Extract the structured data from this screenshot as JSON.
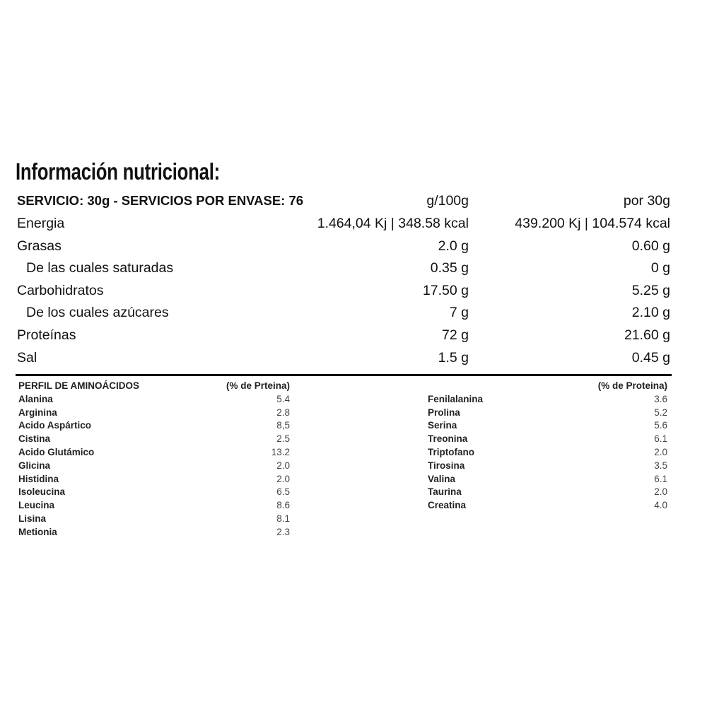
{
  "title": "Información nutricional:",
  "nutrition": {
    "header": {
      "label": "SERVICIO: 30g - SERVICIOS POR ENVASE: 76",
      "col1": "g/100g",
      "col2": "por 30g"
    },
    "rows": [
      {
        "label": "Energia",
        "per100": "1.464,04 Kj | 348.58 kcal",
        "perServing": "439.200 Kj | 104.574 kcal",
        "indent": false
      },
      {
        "label": "Grasas",
        "per100": "2.0 g",
        "perServing": "0.60 g",
        "indent": false
      },
      {
        "label": "De las cuales saturadas",
        "per100": "0.35 g",
        "perServing": "0 g",
        "indent": true
      },
      {
        "label": "Carbohidratos",
        "per100": "17.50 g",
        "perServing": "5.25 g",
        "indent": false
      },
      {
        "label": "De los cuales azúcares",
        "per100": "7 g",
        "perServing": "2.10 g",
        "indent": true
      },
      {
        "label": "Proteínas",
        "per100": "72 g",
        "perServing": "21.60 g",
        "indent": false
      },
      {
        "label": "Sal",
        "per100": "1.5 g",
        "perServing": "0.45 g",
        "indent": false
      }
    ]
  },
  "amino": {
    "left": {
      "header": "PERFIL DE AMINOÁCIDOS",
      "unit": "(% de Prteina)",
      "items": [
        {
          "name": "Alanina",
          "value": "5.4"
        },
        {
          "name": "Arginina",
          "value": "2.8"
        },
        {
          "name": "Acido Aspártico",
          "value": "8,5"
        },
        {
          "name": "Cistina",
          "value": "2.5"
        },
        {
          "name": "Acido Glutámico",
          "value": "13.2"
        },
        {
          "name": "Glicina",
          "value": "2.0"
        },
        {
          "name": "Histidina",
          "value": "2.0"
        },
        {
          "name": "Isoleucina",
          "value": "6.5"
        },
        {
          "name": "Leucina",
          "value": "8.6"
        },
        {
          "name": "Lisina",
          "value": "8.1"
        },
        {
          "name": "Metionia",
          "value": "2.3"
        }
      ]
    },
    "right": {
      "unit": "(% de Proteina)",
      "items": [
        {
          "name": "Fenilalanina",
          "value": "3.6"
        },
        {
          "name": "Prolina",
          "value": "5.2"
        },
        {
          "name": "Serina",
          "value": "5.6"
        },
        {
          "name": "Treonina",
          "value": "6.1"
        },
        {
          "name": "Triptofano",
          "value": "2.0"
        },
        {
          "name": "Tirosina",
          "value": "3.5"
        },
        {
          "name": "Valina",
          "value": "6.1"
        },
        {
          "name": "Taurina",
          "value": "2.0"
        },
        {
          "name": "Creatina",
          "value": "4.0"
        }
      ]
    }
  }
}
